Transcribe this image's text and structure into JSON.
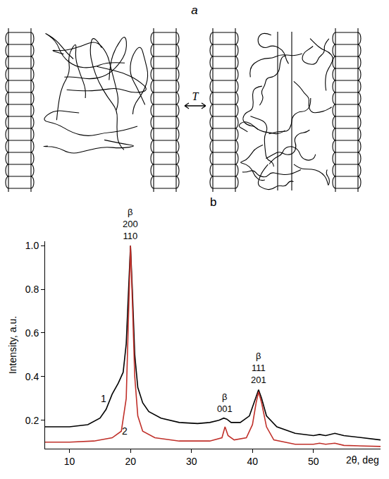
{
  "panels": {
    "a": {
      "label": "a",
      "arrow_label": "T"
    },
    "b": {
      "label": "b"
    }
  },
  "chart_data": {
    "type": "line",
    "xlabel": "2θ, deg",
    "ylabel": "Intensity, a.u.",
    "xlim": [
      6,
      61
    ],
    "xticks": [
      10,
      20,
      30,
      40,
      50
    ],
    "ylim": [
      0.07,
      1.02
    ],
    "yticks": [
      0.2,
      0.4,
      0.6,
      0.8,
      {
        "value": 1,
        "label": "1.0"
      }
    ],
    "grid": false,
    "series": [
      {
        "name": "1",
        "color": "#000000",
        "label_at": [
          15.6,
          0.3
        ],
        "x": [
          6,
          10,
          13,
          15,
          16,
          17,
          18,
          18.8,
          19.3,
          19.7,
          20,
          20.3,
          20.7,
          21.2,
          22,
          23,
          25,
          28,
          31,
          33,
          34.5,
          35.3,
          35.8,
          36.5,
          38,
          39.5,
          40.5,
          41,
          41.5,
          42.3,
          44,
          47,
          50,
          51,
          52,
          53.5,
          55,
          58,
          61
        ],
        "values": [
          0.17,
          0.17,
          0.18,
          0.21,
          0.25,
          0.32,
          0.37,
          0.42,
          0.55,
          0.8,
          1.0,
          0.8,
          0.5,
          0.35,
          0.28,
          0.24,
          0.21,
          0.19,
          0.185,
          0.19,
          0.2,
          0.21,
          0.205,
          0.19,
          0.19,
          0.22,
          0.3,
          0.34,
          0.3,
          0.22,
          0.17,
          0.14,
          0.13,
          0.135,
          0.13,
          0.14,
          0.13,
          0.12,
          0.11
        ]
      },
      {
        "name": "2",
        "color": "#c0302a",
        "label_at": [
          19.0,
          0.15
        ],
        "x": [
          6,
          10,
          14,
          17,
          18.5,
          19.3,
          19.7,
          20,
          20.3,
          20.7,
          21.2,
          22,
          24,
          28,
          33,
          35,
          35.5,
          36,
          37,
          39,
          40,
          40.6,
          41,
          41.5,
          42.3,
          43.5,
          47,
          50,
          51,
          52,
          53.5,
          55,
          61
        ],
        "values": [
          0.1,
          0.1,
          0.105,
          0.12,
          0.15,
          0.3,
          0.7,
          1.0,
          0.75,
          0.4,
          0.22,
          0.15,
          0.12,
          0.105,
          0.105,
          0.12,
          0.17,
          0.13,
          0.11,
          0.12,
          0.18,
          0.28,
          0.33,
          0.28,
          0.17,
          0.11,
          0.09,
          0.09,
          0.095,
          0.09,
          0.095,
          0.085,
          0.08
        ]
      }
    ],
    "annotations": [
      {
        "lines": [
          "β",
          "200",
          "110"
        ],
        "x": 20,
        "y": 1.0
      },
      {
        "lines": [
          "β",
          "001"
        ],
        "x": 35.5,
        "y": 0.21
      },
      {
        "lines": [
          "β",
          "111",
          "201"
        ],
        "x": 41,
        "y": 0.34
      }
    ]
  }
}
